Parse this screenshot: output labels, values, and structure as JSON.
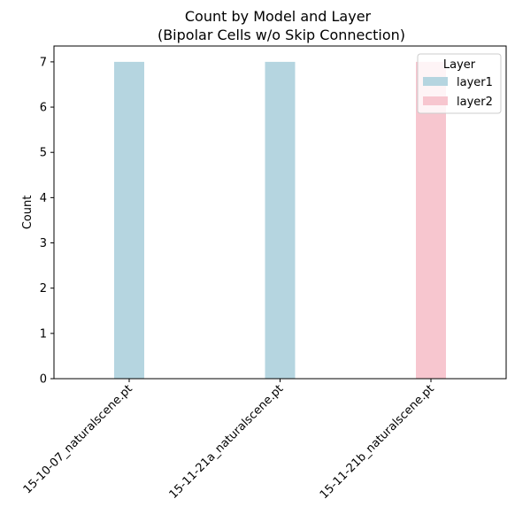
{
  "chart_data": {
    "type": "bar",
    "title": "Count by Model and Layer",
    "subtitle": "(Bipolar Cells w/o Skip Connection)",
    "xlabel": "",
    "ylabel": "Count",
    "categories": [
      "15-10-07_naturalscene.pt",
      "15-11-21a_naturalscene.pt",
      "15-11-21b_naturalscene.pt"
    ],
    "series": [
      {
        "name": "layer1",
        "color": "#b5d5e0",
        "values": [
          7,
          7,
          0
        ]
      },
      {
        "name": "layer2",
        "color": "#f7c6cf",
        "values": [
          0,
          0,
          7
        ]
      }
    ],
    "ylim": [
      0,
      7.35
    ],
    "yticks": [
      0,
      1,
      2,
      3,
      4,
      5,
      6,
      7
    ],
    "grid": false,
    "legend": {
      "title": "Layer",
      "placement": "top-right"
    }
  }
}
